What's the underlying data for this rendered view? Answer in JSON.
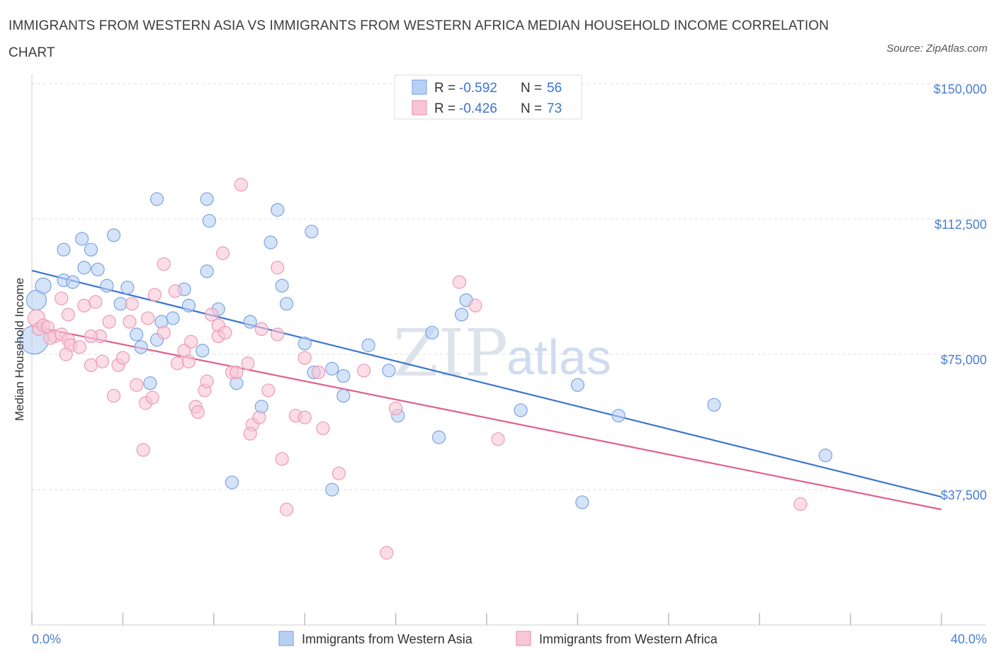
{
  "title": "IMMIGRANTS FROM WESTERN ASIA VS IMMIGRANTS FROM WESTERN AFRICA MEDIAN HOUSEHOLD INCOME CORRELATION CHART",
  "source": "Source: ZipAtlas.com",
  "watermark": {
    "zip": "ZIP",
    "atlas": "atlas"
  },
  "legend": {
    "r_label": "R =",
    "n_label": "N =",
    "items": [
      {
        "r": "-0.592",
        "n": "56",
        "color": "#6f9ee6",
        "fill": "#b9d0f5"
      },
      {
        "r": "-0.426",
        "n": "73",
        "color": "#e88aa8",
        "fill": "#f8c6d6"
      }
    ]
  },
  "chart_data": {
    "type": "scatter",
    "title": "IMMIGRANTS FROM WESTERN ASIA VS IMMIGRANTS FROM WESTERN AFRICA MEDIAN HOUSEHOLD INCOME CORRELATION CHART",
    "xlabel": "",
    "ylabel": "Median Household Income",
    "xlim": [
      0,
      40
    ],
    "ylim": [
      0,
      150000
    ],
    "x_tick_labels": [
      "0.0%",
      "40.0%"
    ],
    "y_ticks": [
      37500,
      75000,
      112500,
      150000
    ],
    "y_tick_labels": [
      "$37,500",
      "$75,000",
      "$112,500",
      "$150,000"
    ],
    "grid": true,
    "series": [
      {
        "name": "Immigrants from Western Asia",
        "color": "#3a76d0",
        "fill": "#b9d0f5",
        "trend": {
          "x": [
            0,
            40
          ],
          "y": [
            98200,
            35500
          ]
        },
        "points": [
          [
            0.2,
            90000
          ],
          [
            0.1,
            79000
          ],
          [
            1.4,
            95500
          ],
          [
            2.2,
            107000
          ],
          [
            1.4,
            104000
          ],
          [
            2.6,
            104000
          ],
          [
            3.6,
            108000
          ],
          [
            2.3,
            99000
          ],
          [
            2.9,
            98500
          ],
          [
            1.8,
            95000
          ],
          [
            3.3,
            94000
          ],
          [
            4.2,
            93500
          ],
          [
            5.5,
            118000
          ],
          [
            7.7,
            118000
          ],
          [
            7.8,
            112000
          ],
          [
            10.8,
            115000
          ],
          [
            10.5,
            106000
          ],
          [
            12.3,
            109000
          ],
          [
            7.7,
            98000
          ],
          [
            6.7,
            93000
          ],
          [
            3.9,
            89000
          ],
          [
            6.2,
            85000
          ],
          [
            6.9,
            88500
          ],
          [
            8.2,
            87500
          ],
          [
            5.7,
            84000
          ],
          [
            4.6,
            80500
          ],
          [
            5.5,
            79000
          ],
          [
            4.8,
            77000
          ],
          [
            7.5,
            76000
          ],
          [
            9.6,
            84000
          ],
          [
            11.0,
            94000
          ],
          [
            11.2,
            89000
          ],
          [
            12.0,
            78000
          ],
          [
            14.8,
            77500
          ],
          [
            12.4,
            70000
          ],
          [
            13.2,
            71000
          ],
          [
            13.7,
            69000
          ],
          [
            15.7,
            70500
          ],
          [
            17.6,
            81000
          ],
          [
            19.1,
            90000
          ],
          [
            18.9,
            86000
          ],
          [
            9.0,
            67000
          ],
          [
            10.1,
            60500
          ],
          [
            5.2,
            67000
          ],
          [
            13.7,
            63500
          ],
          [
            16.1,
            58000
          ],
          [
            17.9,
            52000
          ],
          [
            21.5,
            59500
          ],
          [
            24.0,
            66500
          ],
          [
            25.8,
            58000
          ],
          [
            30.0,
            61000
          ],
          [
            34.9,
            47000
          ],
          [
            8.8,
            39500
          ],
          [
            13.2,
            37500
          ],
          [
            24.2,
            34000
          ],
          [
            0.5,
            94000
          ]
        ]
      },
      {
        "name": "Immigrants from Western Africa",
        "color": "#e0608c",
        "fill": "#f8c6d6",
        "trend": {
          "x": [
            0,
            40
          ],
          "y": [
            82800,
            32000
          ]
        },
        "points": [
          [
            0.2,
            85000
          ],
          [
            0.3,
            82000
          ],
          [
            0.5,
            83000
          ],
          [
            0.7,
            82500
          ],
          [
            1.0,
            80000
          ],
          [
            0.8,
            79500
          ],
          [
            1.3,
            80500
          ],
          [
            1.6,
            79000
          ],
          [
            1.7,
            77500
          ],
          [
            1.5,
            75000
          ],
          [
            2.1,
            77000
          ],
          [
            1.6,
            86000
          ],
          [
            2.3,
            88500
          ],
          [
            2.8,
            89500
          ],
          [
            3.4,
            84000
          ],
          [
            3.0,
            80000
          ],
          [
            2.6,
            80000
          ],
          [
            2.6,
            72000
          ],
          [
            3.1,
            73000
          ],
          [
            3.8,
            72000
          ],
          [
            4.0,
            74000
          ],
          [
            4.3,
            84000
          ],
          [
            4.4,
            89000
          ],
          [
            3.6,
            63500
          ],
          [
            4.6,
            66500
          ],
          [
            5.0,
            61500
          ],
          [
            5.3,
            63000
          ],
          [
            5.1,
            85000
          ],
          [
            5.8,
            81000
          ],
          [
            5.4,
            91500
          ],
          [
            5.8,
            100000
          ],
          [
            6.3,
            92500
          ],
          [
            6.4,
            72500
          ],
          [
            6.7,
            76000
          ],
          [
            6.9,
            73000
          ],
          [
            7.0,
            78500
          ],
          [
            7.2,
            60500
          ],
          [
            7.3,
            59000
          ],
          [
            7.6,
            65000
          ],
          [
            7.7,
            67500
          ],
          [
            7.9,
            86000
          ],
          [
            8.2,
            80000
          ],
          [
            8.2,
            83000
          ],
          [
            8.5,
            81000
          ],
          [
            8.4,
            103000
          ],
          [
            8.8,
            70000
          ],
          [
            9.0,
            70000
          ],
          [
            9.2,
            122000
          ],
          [
            9.5,
            72500
          ],
          [
            9.7,
            55500
          ],
          [
            9.6,
            53000
          ],
          [
            10.0,
            57500
          ],
          [
            10.4,
            65000
          ],
          [
            10.1,
            82000
          ],
          [
            10.8,
            80500
          ],
          [
            10.8,
            99000
          ],
          [
            11.0,
            46000
          ],
          [
            11.2,
            32000
          ],
          [
            11.6,
            58000
          ],
          [
            12.0,
            57500
          ],
          [
            12.0,
            74000
          ],
          [
            12.6,
            70000
          ],
          [
            12.8,
            54500
          ],
          [
            13.5,
            42000
          ],
          [
            14.6,
            70500
          ],
          [
            15.6,
            20000
          ],
          [
            16.0,
            60000
          ],
          [
            18.8,
            95000
          ],
          [
            19.5,
            88500
          ],
          [
            20.5,
            51500
          ],
          [
            33.8,
            33500
          ],
          [
            1.3,
            90500
          ],
          [
            4.9,
            48500
          ]
        ]
      }
    ]
  },
  "bottom_legend": [
    "Immigrants from Western Asia",
    "Immigrants from Western Africa"
  ]
}
